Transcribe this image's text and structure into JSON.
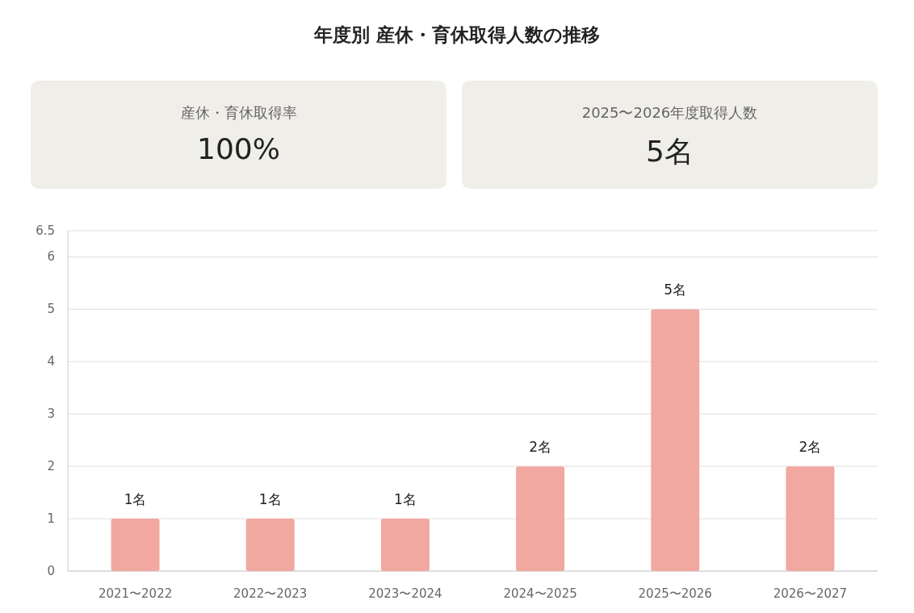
{
  "chart_data": [
    {
      "type": "other",
      "title": "年度別 産休・育休取得人数の推移",
      "annotations": [
        "産休・育休取得率",
        "100%",
        "2025〜2026年度取得人数",
        "5名"
      ]
    },
    {
      "type": "bar",
      "categories": [
        "2021〜2022",
        "2022〜2023",
        "2023〜2024",
        "2024〜2025",
        "2025〜2026",
        "2026〜2027"
      ],
      "values": [
        1,
        1,
        1,
        2,
        5,
        2
      ],
      "color": "#f0a8a0",
      "value_labels": [
        "1名",
        "1名",
        "1名",
        "2名",
        "5名",
        "2名"
      ],
      "ylim": [
        0,
        6.5
      ],
      "yticks": [
        0,
        1,
        2,
        3,
        4,
        5,
        6,
        6.5
      ],
      "grid": "y"
    }
  ]
}
